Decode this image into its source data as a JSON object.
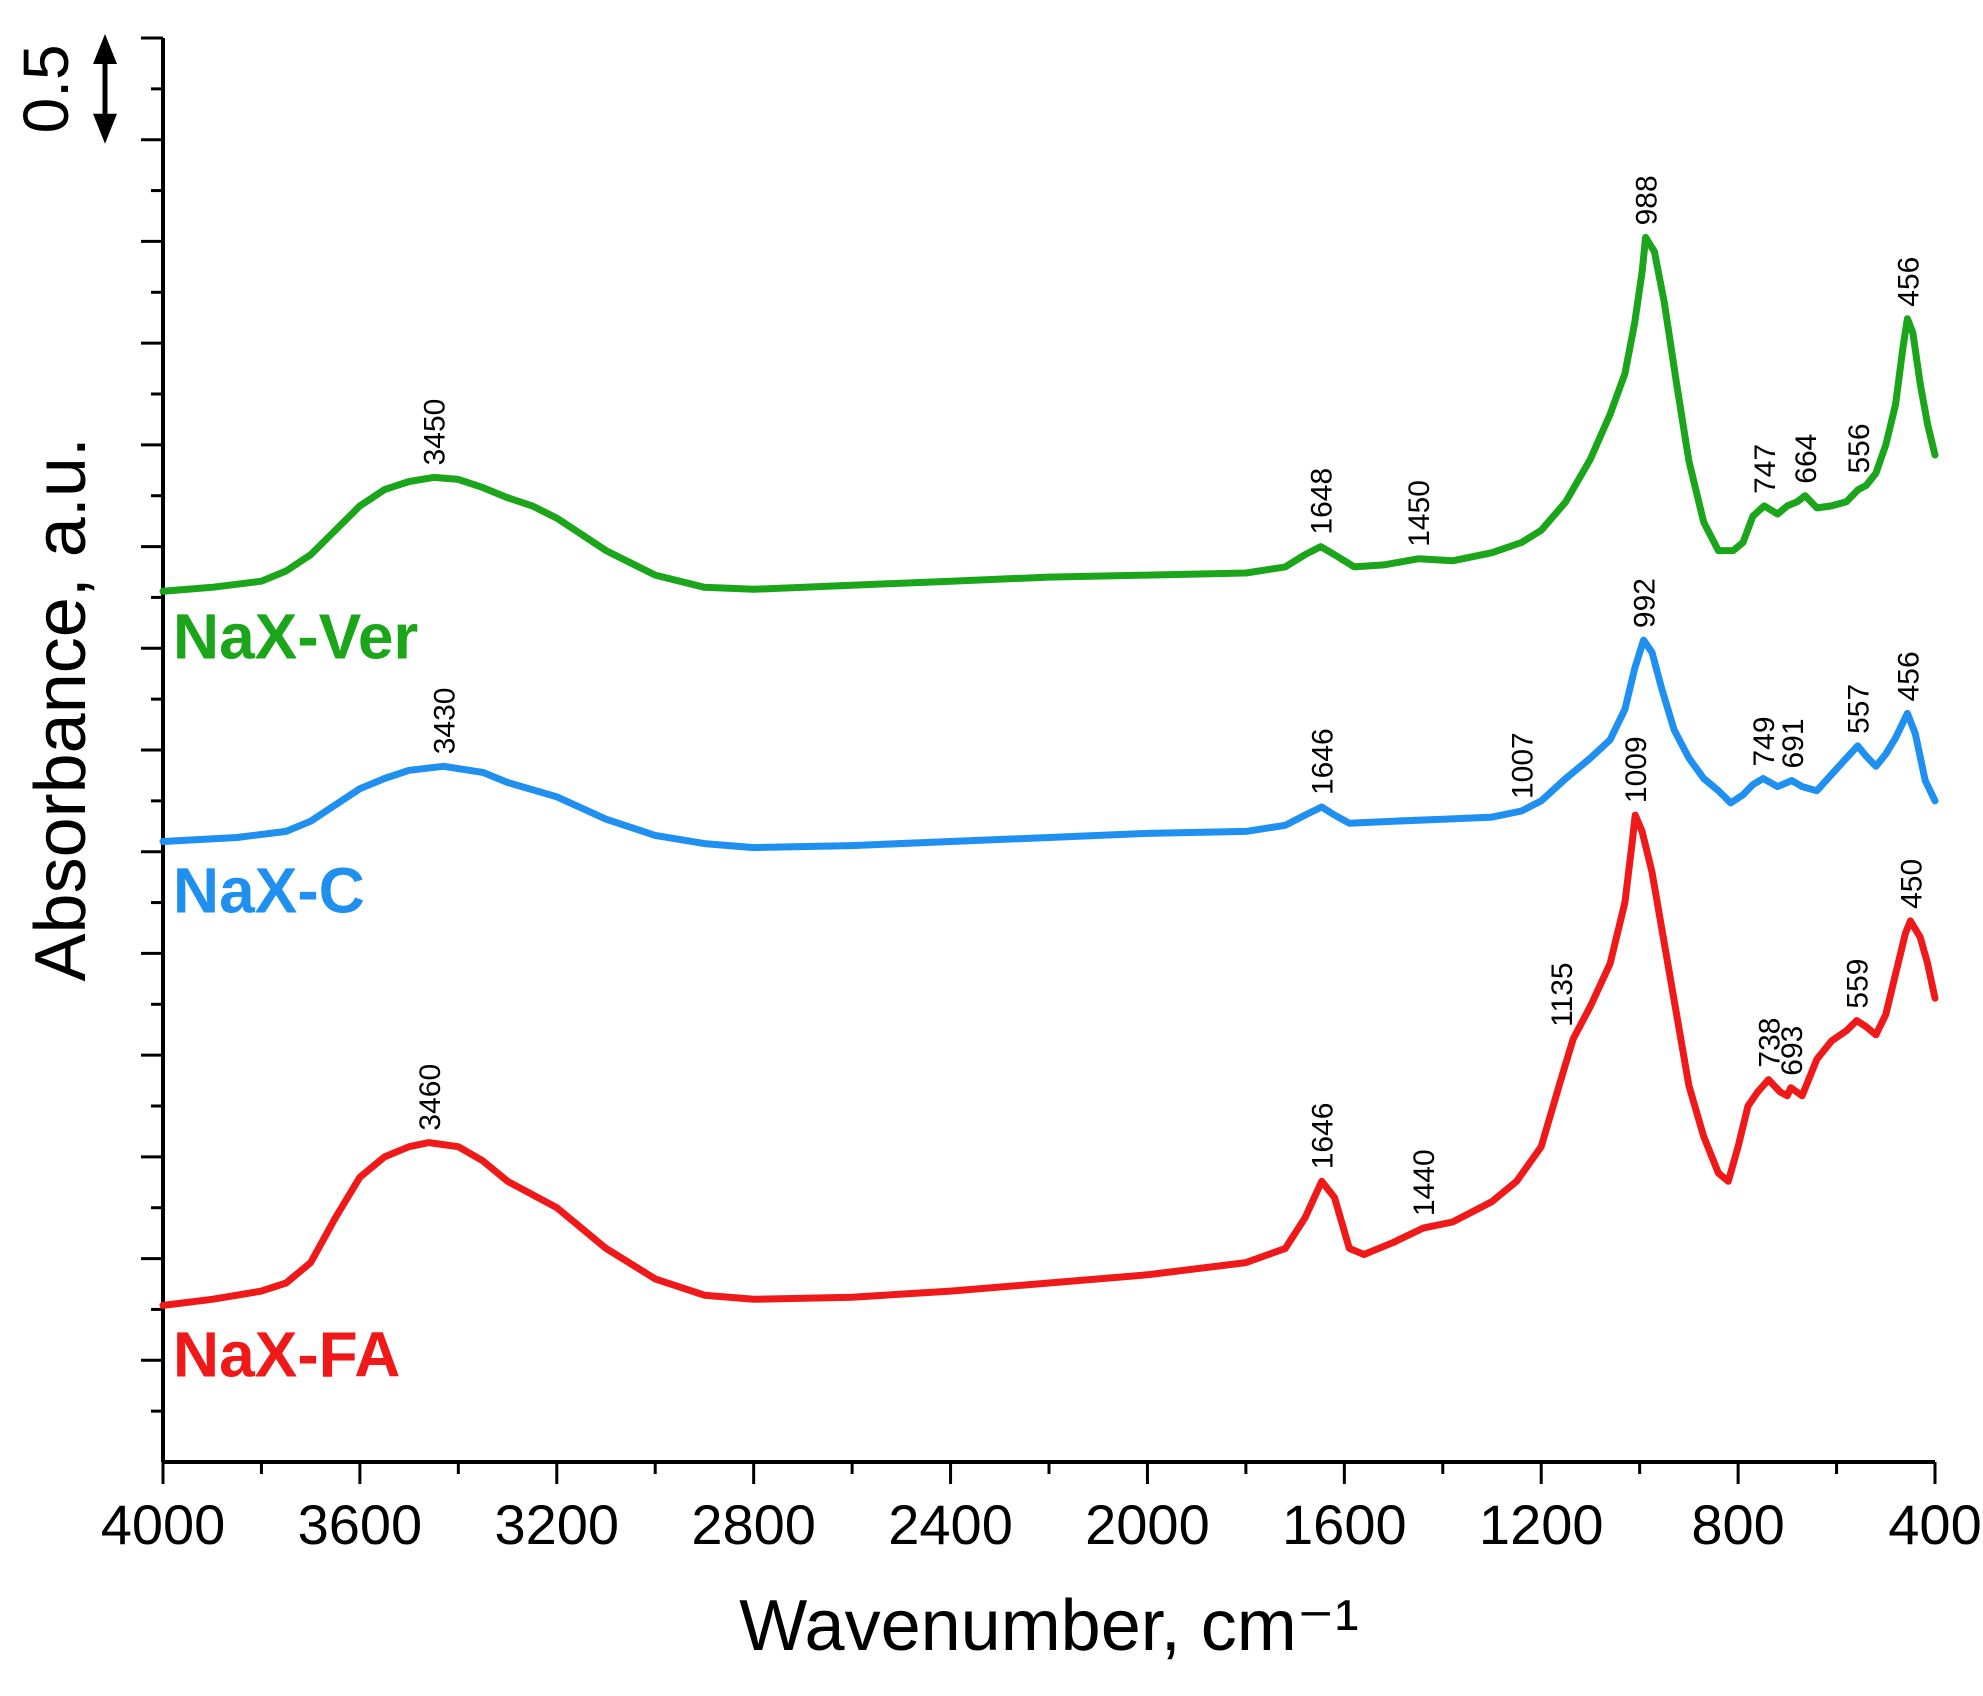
{
  "chart_data": {
    "type": "line",
    "xlabel": "Wavenumber, cm⁻¹",
    "ylabel": "Absorbance, a.u.",
    "xlim": [
      4000,
      400
    ],
    "x_reversed": true,
    "x_ticks": [
      4000,
      3600,
      3200,
      2800,
      2400,
      2000,
      1600,
      1200,
      800,
      400
    ],
    "x_tick_labels": [
      "4000",
      "3600",
      "3200",
      "2800",
      "2400",
      "2000",
      "1600",
      "1200",
      "800",
      "400"
    ],
    "x_minor_step": 200,
    "ylim": [
      0,
      7.0
    ],
    "y_minor_step": 0.25,
    "y_major_step": 0.5,
    "y_tick_labels_shown": false,
    "grid": false,
    "scale_bar": {
      "label": "0.5",
      "from": 6.5,
      "to": 7.0
    },
    "series": [
      {
        "name": "NaX-Ver",
        "color": "#1aa51a",
        "points": [
          [
            4000,
            4.28
          ],
          [
            3900,
            4.3
          ],
          [
            3800,
            4.33
          ],
          [
            3750,
            4.38
          ],
          [
            3700,
            4.46
          ],
          [
            3650,
            4.58
          ],
          [
            3600,
            4.7
          ],
          [
            3550,
            4.78
          ],
          [
            3500,
            4.82
          ],
          [
            3450,
            4.84
          ],
          [
            3400,
            4.83
          ],
          [
            3350,
            4.79
          ],
          [
            3300,
            4.74
          ],
          [
            3250,
            4.7
          ],
          [
            3200,
            4.64
          ],
          [
            3100,
            4.48
          ],
          [
            3000,
            4.36
          ],
          [
            2900,
            4.3
          ],
          [
            2800,
            4.29
          ],
          [
            2600,
            4.31
          ],
          [
            2400,
            4.33
          ],
          [
            2200,
            4.35
          ],
          [
            2000,
            4.36
          ],
          [
            1800,
            4.37
          ],
          [
            1720,
            4.4
          ],
          [
            1680,
            4.46
          ],
          [
            1648,
            4.5
          ],
          [
            1620,
            4.46
          ],
          [
            1580,
            4.4
          ],
          [
            1520,
            4.41
          ],
          [
            1450,
            4.44
          ],
          [
            1380,
            4.43
          ],
          [
            1300,
            4.47
          ],
          [
            1240,
            4.52
          ],
          [
            1200,
            4.58
          ],
          [
            1150,
            4.72
          ],
          [
            1100,
            4.93
          ],
          [
            1060,
            5.15
          ],
          [
            1030,
            5.35
          ],
          [
            1010,
            5.6
          ],
          [
            995,
            5.85
          ],
          [
            988,
            6.02
          ],
          [
            970,
            5.95
          ],
          [
            950,
            5.7
          ],
          [
            925,
            5.3
          ],
          [
            900,
            4.92
          ],
          [
            870,
            4.62
          ],
          [
            840,
            4.48
          ],
          [
            810,
            4.48
          ],
          [
            790,
            4.52
          ],
          [
            770,
            4.65
          ],
          [
            747,
            4.7
          ],
          [
            720,
            4.66
          ],
          [
            700,
            4.7
          ],
          [
            680,
            4.72
          ],
          [
            664,
            4.75
          ],
          [
            640,
            4.69
          ],
          [
            610,
            4.7
          ],
          [
            580,
            4.72
          ],
          [
            556,
            4.78
          ],
          [
            540,
            4.8
          ],
          [
            520,
            4.86
          ],
          [
            500,
            5.0
          ],
          [
            480,
            5.2
          ],
          [
            465,
            5.48
          ],
          [
            456,
            5.62
          ],
          [
            445,
            5.55
          ],
          [
            430,
            5.3
          ],
          [
            415,
            5.1
          ],
          [
            400,
            4.95
          ]
        ],
        "peaks": [
          "3450",
          "1648",
          "1450",
          "988",
          "747",
          "664",
          "556",
          "456"
        ]
      },
      {
        "name": "NaX-C",
        "color": "#1f8ff0",
        "points": [
          [
            4000,
            3.05
          ],
          [
            3850,
            3.07
          ],
          [
            3750,
            3.1
          ],
          [
            3700,
            3.15
          ],
          [
            3650,
            3.23
          ],
          [
            3600,
            3.31
          ],
          [
            3550,
            3.36
          ],
          [
            3500,
            3.4
          ],
          [
            3430,
            3.42
          ],
          [
            3350,
            3.39
          ],
          [
            3300,
            3.34
          ],
          [
            3200,
            3.27
          ],
          [
            3100,
            3.16
          ],
          [
            3000,
            3.08
          ],
          [
            2900,
            3.04
          ],
          [
            2800,
            3.02
          ],
          [
            2600,
            3.03
          ],
          [
            2400,
            3.05
          ],
          [
            2200,
            3.07
          ],
          [
            2000,
            3.09
          ],
          [
            1800,
            3.1
          ],
          [
            1720,
            3.13
          ],
          [
            1680,
            3.18
          ],
          [
            1646,
            3.22
          ],
          [
            1620,
            3.18
          ],
          [
            1590,
            3.14
          ],
          [
            1500,
            3.15
          ],
          [
            1400,
            3.16
          ],
          [
            1300,
            3.17
          ],
          [
            1240,
            3.2
          ],
          [
            1200,
            3.25
          ],
          [
            1150,
            3.36
          ],
          [
            1100,
            3.46
          ],
          [
            1060,
            3.55
          ],
          [
            1030,
            3.7
          ],
          [
            1010,
            3.9
          ],
          [
            992,
            4.04
          ],
          [
            975,
            3.98
          ],
          [
            955,
            3.8
          ],
          [
            930,
            3.6
          ],
          [
            900,
            3.46
          ],
          [
            870,
            3.36
          ],
          [
            840,
            3.3
          ],
          [
            815,
            3.24
          ],
          [
            790,
            3.28
          ],
          [
            770,
            3.33
          ],
          [
            749,
            3.36
          ],
          [
            720,
            3.32
          ],
          [
            691,
            3.35
          ],
          [
            670,
            3.32
          ],
          [
            640,
            3.3
          ],
          [
            610,
            3.38
          ],
          [
            580,
            3.46
          ],
          [
            557,
            3.52
          ],
          [
            540,
            3.47
          ],
          [
            520,
            3.42
          ],
          [
            500,
            3.48
          ],
          [
            480,
            3.56
          ],
          [
            456,
            3.68
          ],
          [
            440,
            3.58
          ],
          [
            420,
            3.35
          ],
          [
            400,
            3.25
          ]
        ],
        "peaks": [
          "3430",
          "1646",
          "1007",
          "992",
          "749",
          "691",
          "557",
          "456"
        ]
      },
      {
        "name": "NaX-FA",
        "color": "#f01919",
        "points": [
          [
            4000,
            0.77
          ],
          [
            3900,
            0.8
          ],
          [
            3800,
            0.84
          ],
          [
            3750,
            0.88
          ],
          [
            3700,
            0.98
          ],
          [
            3650,
            1.2
          ],
          [
            3600,
            1.4
          ],
          [
            3550,
            1.5
          ],
          [
            3500,
            1.55
          ],
          [
            3460,
            1.57
          ],
          [
            3400,
            1.55
          ],
          [
            3350,
            1.48
          ],
          [
            3300,
            1.38
          ],
          [
            3200,
            1.25
          ],
          [
            3100,
            1.05
          ],
          [
            3000,
            0.9
          ],
          [
            2900,
            0.82
          ],
          [
            2800,
            0.8
          ],
          [
            2600,
            0.81
          ],
          [
            2400,
            0.84
          ],
          [
            2200,
            0.88
          ],
          [
            2000,
            0.92
          ],
          [
            1800,
            0.98
          ],
          [
            1720,
            1.05
          ],
          [
            1680,
            1.2
          ],
          [
            1646,
            1.38
          ],
          [
            1620,
            1.3
          ],
          [
            1590,
            1.05
          ],
          [
            1560,
            1.02
          ],
          [
            1500,
            1.08
          ],
          [
            1440,
            1.15
          ],
          [
            1380,
            1.18
          ],
          [
            1300,
            1.28
          ],
          [
            1250,
            1.38
          ],
          [
            1200,
            1.55
          ],
          [
            1160,
            1.88
          ],
          [
            1135,
            2.08
          ],
          [
            1100,
            2.24
          ],
          [
            1060,
            2.45
          ],
          [
            1030,
            2.75
          ],
          [
            1015,
            3.05
          ],
          [
            1009,
            3.18
          ],
          [
            995,
            3.1
          ],
          [
            975,
            2.9
          ],
          [
            950,
            2.55
          ],
          [
            925,
            2.2
          ],
          [
            900,
            1.85
          ],
          [
            870,
            1.6
          ],
          [
            840,
            1.42
          ],
          [
            820,
            1.38
          ],
          [
            800,
            1.55
          ],
          [
            780,
            1.75
          ],
          [
            760,
            1.82
          ],
          [
            738,
            1.88
          ],
          [
            715,
            1.82
          ],
          [
            700,
            1.8
          ],
          [
            693,
            1.84
          ],
          [
            670,
            1.8
          ],
          [
            640,
            1.98
          ],
          [
            610,
            2.07
          ],
          [
            580,
            2.12
          ],
          [
            559,
            2.17
          ],
          [
            540,
            2.14
          ],
          [
            520,
            2.1
          ],
          [
            500,
            2.2
          ],
          [
            480,
            2.4
          ],
          [
            460,
            2.6
          ],
          [
            450,
            2.66
          ],
          [
            430,
            2.58
          ],
          [
            415,
            2.45
          ],
          [
            400,
            2.28
          ]
        ],
        "peaks": [
          "3460",
          "1646",
          "1440",
          "1135",
          "1009",
          "738",
          "693",
          "559",
          "450"
        ]
      }
    ],
    "peak_labels": [
      {
        "text": "988",
        "x": 988,
        "y": 6.02
      },
      {
        "text": "456",
        "x": 456,
        "y": 5.62
      },
      {
        "text": "3450",
        "x": 3450,
        "y": 4.84
      },
      {
        "text": "1648",
        "x": 1648,
        "y": 4.5
      },
      {
        "text": "1450",
        "x": 1450,
        "y": 4.44
      },
      {
        "text": "747",
        "x": 747,
        "y": 4.7
      },
      {
        "text": "664",
        "x": 664,
        "y": 4.75
      },
      {
        "text": "556",
        "x": 556,
        "y": 4.8
      },
      {
        "text": "992",
        "x": 992,
        "y": 4.04
      },
      {
        "text": "456",
        "x": 456,
        "y": 3.68
      },
      {
        "text": "3430",
        "x": 3430,
        "y": 3.42
      },
      {
        "text": "1646",
        "x": 1646,
        "y": 3.22
      },
      {
        "text": "1007",
        "x": 1240,
        "y": 3.2
      },
      {
        "text": "749",
        "x": 749,
        "y": 3.36
      },
      {
        "text": "691",
        "x": 691,
        "y": 3.35
      },
      {
        "text": "557",
        "x": 557,
        "y": 3.52
      },
      {
        "text": "1009",
        "x": 1009,
        "y": 3.18
      },
      {
        "text": "1135",
        "x": 1160,
        "y": 2.08
      },
      {
        "text": "450",
        "x": 450,
        "y": 2.66
      },
      {
        "text": "3460",
        "x": 3460,
        "y": 1.57
      },
      {
        "text": "1646",
        "x": 1646,
        "y": 1.38
      },
      {
        "text": "1440",
        "x": 1440,
        "y": 1.15
      },
      {
        "text": "738",
        "x": 738,
        "y": 1.88
      },
      {
        "text": "693",
        "x": 693,
        "y": 1.84
      },
      {
        "text": "559",
        "x": 559,
        "y": 2.17
      }
    ],
    "series_labels": [
      {
        "text": "NaX-Ver",
        "color": "#1aa51a",
        "x": 3980,
        "y": 3.95
      },
      {
        "text": "NaX-C",
        "color": "#1f8ff0",
        "x": 3980,
        "y": 2.7
      },
      {
        "text": "NaX-FA",
        "color": "#f01919",
        "x": 3980,
        "y": 0.42
      }
    ]
  }
}
